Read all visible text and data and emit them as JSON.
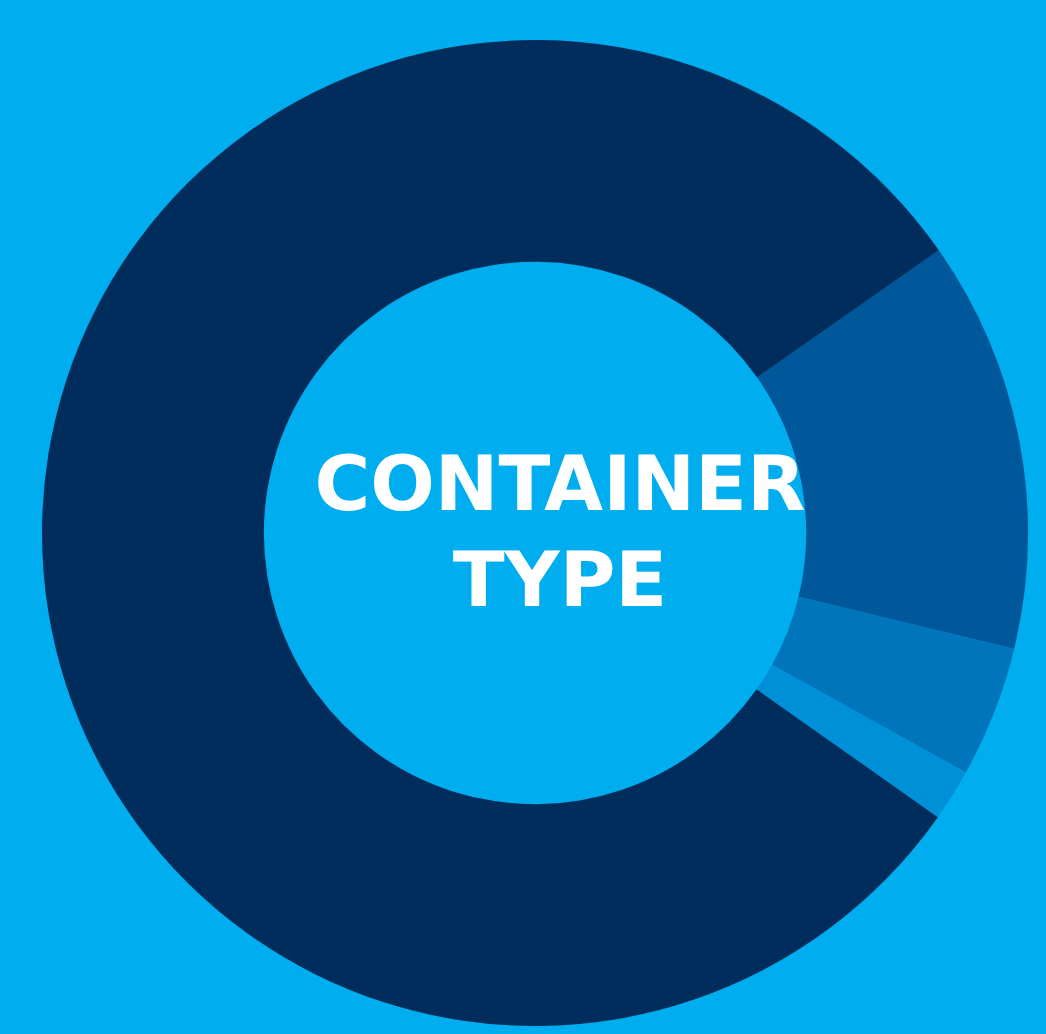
{
  "chart_data": {
    "type": "donut",
    "title": "CONTAINER TYPE",
    "categories": [
      null,
      null,
      null,
      null
    ],
    "values": [
      13.5,
      4.3,
      1.7,
      80.5
    ],
    "colors": [
      "#00579a",
      "#0075bb",
      "#0090d8",
      "#002d5c"
    ],
    "legend": false
  }
}
